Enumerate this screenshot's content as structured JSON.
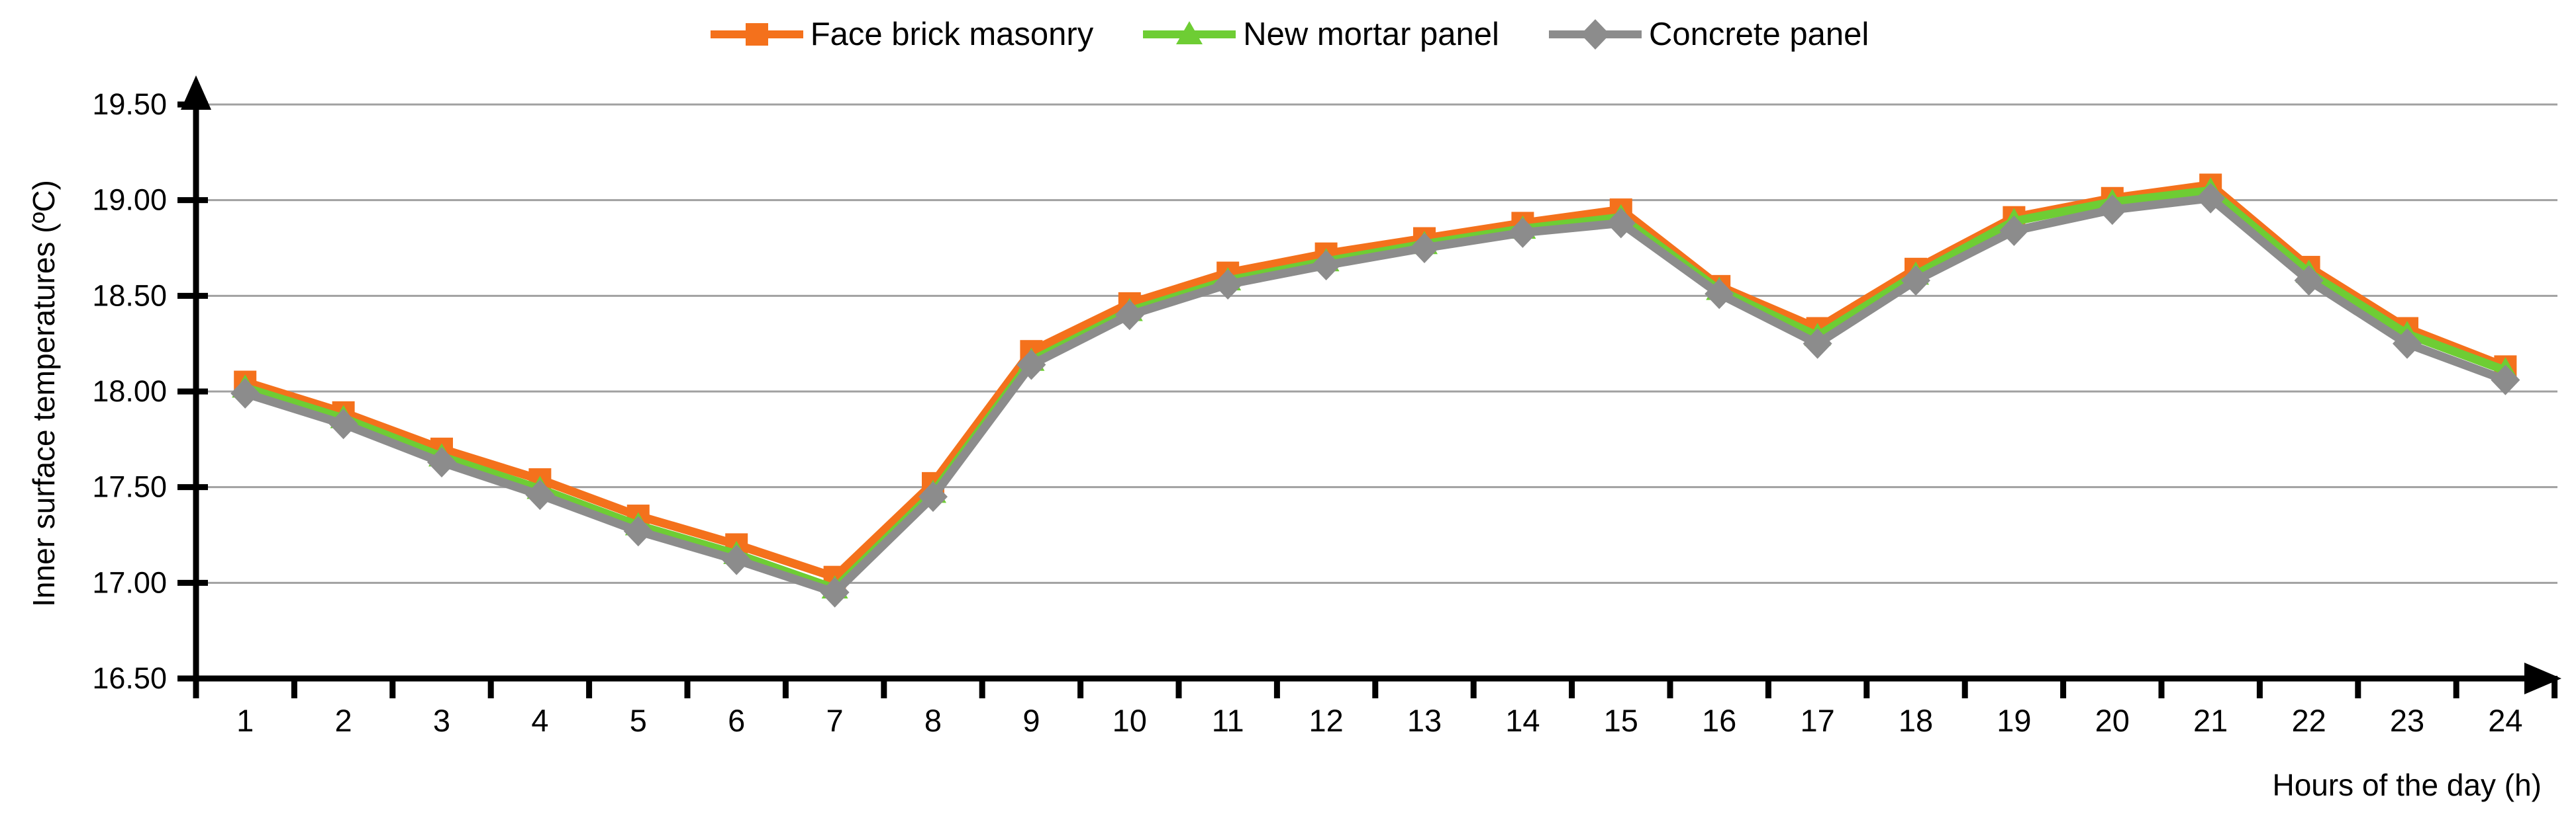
{
  "chart_data": {
    "type": "line",
    "title": "",
    "xlabel": "Hours of the day (h)",
    "ylabel": "Inner surface temperatures (ºC)",
    "x": [
      1,
      2,
      3,
      4,
      5,
      6,
      7,
      8,
      9,
      10,
      11,
      12,
      13,
      14,
      15,
      16,
      17,
      18,
      19,
      20,
      21,
      22,
      23,
      24
    ],
    "y_ticks": [
      "19.50",
      "19.00",
      "18.50",
      "18.00",
      "17.50",
      "17.00",
      "16.50"
    ],
    "ylim": [
      16.5,
      19.5
    ],
    "grid": true,
    "legend_position": "top",
    "gridline_color": "#A1A1A1",
    "axis_color": "#000000",
    "series": [
      {
        "name": "Face brick masonry",
        "marker": "square",
        "color": "#F4711C",
        "values": [
          18.05,
          17.89,
          17.7,
          17.54,
          17.35,
          17.2,
          17.03,
          17.52,
          18.21,
          18.46,
          18.62,
          18.72,
          18.8,
          18.88,
          18.95,
          18.55,
          18.33,
          18.64,
          18.91,
          19.01,
          19.08,
          18.65,
          18.33,
          18.13
        ]
      },
      {
        "name": "New mortar panel",
        "marker": "triangle",
        "color": "#6ECD34",
        "values": [
          18.02,
          17.86,
          17.66,
          17.49,
          17.3,
          17.15,
          16.97,
          17.47,
          18.16,
          18.42,
          18.58,
          18.68,
          18.77,
          18.85,
          18.91,
          18.53,
          18.29,
          18.61,
          18.89,
          18.99,
          19.05,
          18.62,
          18.3,
          18.11
        ]
      },
      {
        "name": "Concrete panel",
        "marker": "diamond",
        "color": "#8C8C8C",
        "values": [
          17.99,
          17.83,
          17.63,
          17.46,
          17.27,
          17.12,
          16.95,
          17.45,
          18.14,
          18.4,
          18.56,
          18.66,
          18.75,
          18.83,
          18.88,
          18.51,
          18.25,
          18.58,
          18.84,
          18.95,
          19.01,
          18.58,
          18.25,
          18.06
        ]
      }
    ]
  }
}
